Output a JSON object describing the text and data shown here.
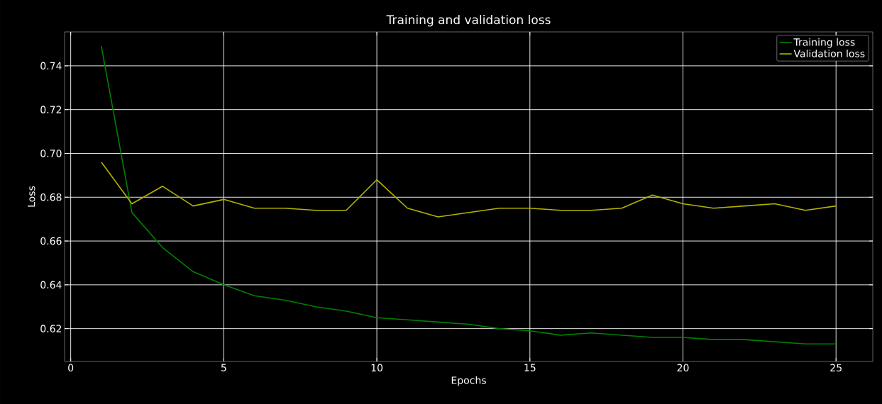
{
  "chart_data": {
    "type": "line",
    "title": "Training and validation loss",
    "xlabel": "Epochs",
    "ylabel": "Loss",
    "x": [
      1,
      2,
      3,
      4,
      5,
      6,
      7,
      8,
      9,
      10,
      11,
      12,
      13,
      14,
      15,
      16,
      17,
      18,
      19,
      20,
      21,
      22,
      23,
      24,
      25
    ],
    "series": [
      {
        "name": "Training loss",
        "color": "#008000",
        "values": [
          0.749,
          0.673,
          0.657,
          0.646,
          0.64,
          0.635,
          0.633,
          0.63,
          0.628,
          0.625,
          0.624,
          0.623,
          0.622,
          0.62,
          0.619,
          0.617,
          0.618,
          0.617,
          0.616,
          0.616,
          0.615,
          0.615,
          0.614,
          0.613,
          0.613
        ]
      },
      {
        "name": "Validation loss",
        "color": "#b3b300",
        "values": [
          0.696,
          0.677,
          0.685,
          0.676,
          0.679,
          0.675,
          0.675,
          0.674,
          0.674,
          0.688,
          0.675,
          0.671,
          0.673,
          0.675,
          0.675,
          0.674,
          0.674,
          0.675,
          0.681,
          0.677,
          0.675,
          0.676,
          0.677,
          0.674,
          0.676
        ]
      }
    ],
    "xlim": [
      -0.2,
      26.2
    ],
    "ylim": [
      0.605,
      0.7555
    ],
    "xticks": [
      0,
      5,
      10,
      15,
      20,
      25
    ],
    "yticks": [
      0.62,
      0.64,
      0.66,
      0.68,
      {
        "value": 0.7,
        "label": "0.70"
      },
      0.72,
      0.74
    ],
    "grid": true,
    "legend": "top right",
    "marker": "none",
    "line_style": "solid"
  }
}
